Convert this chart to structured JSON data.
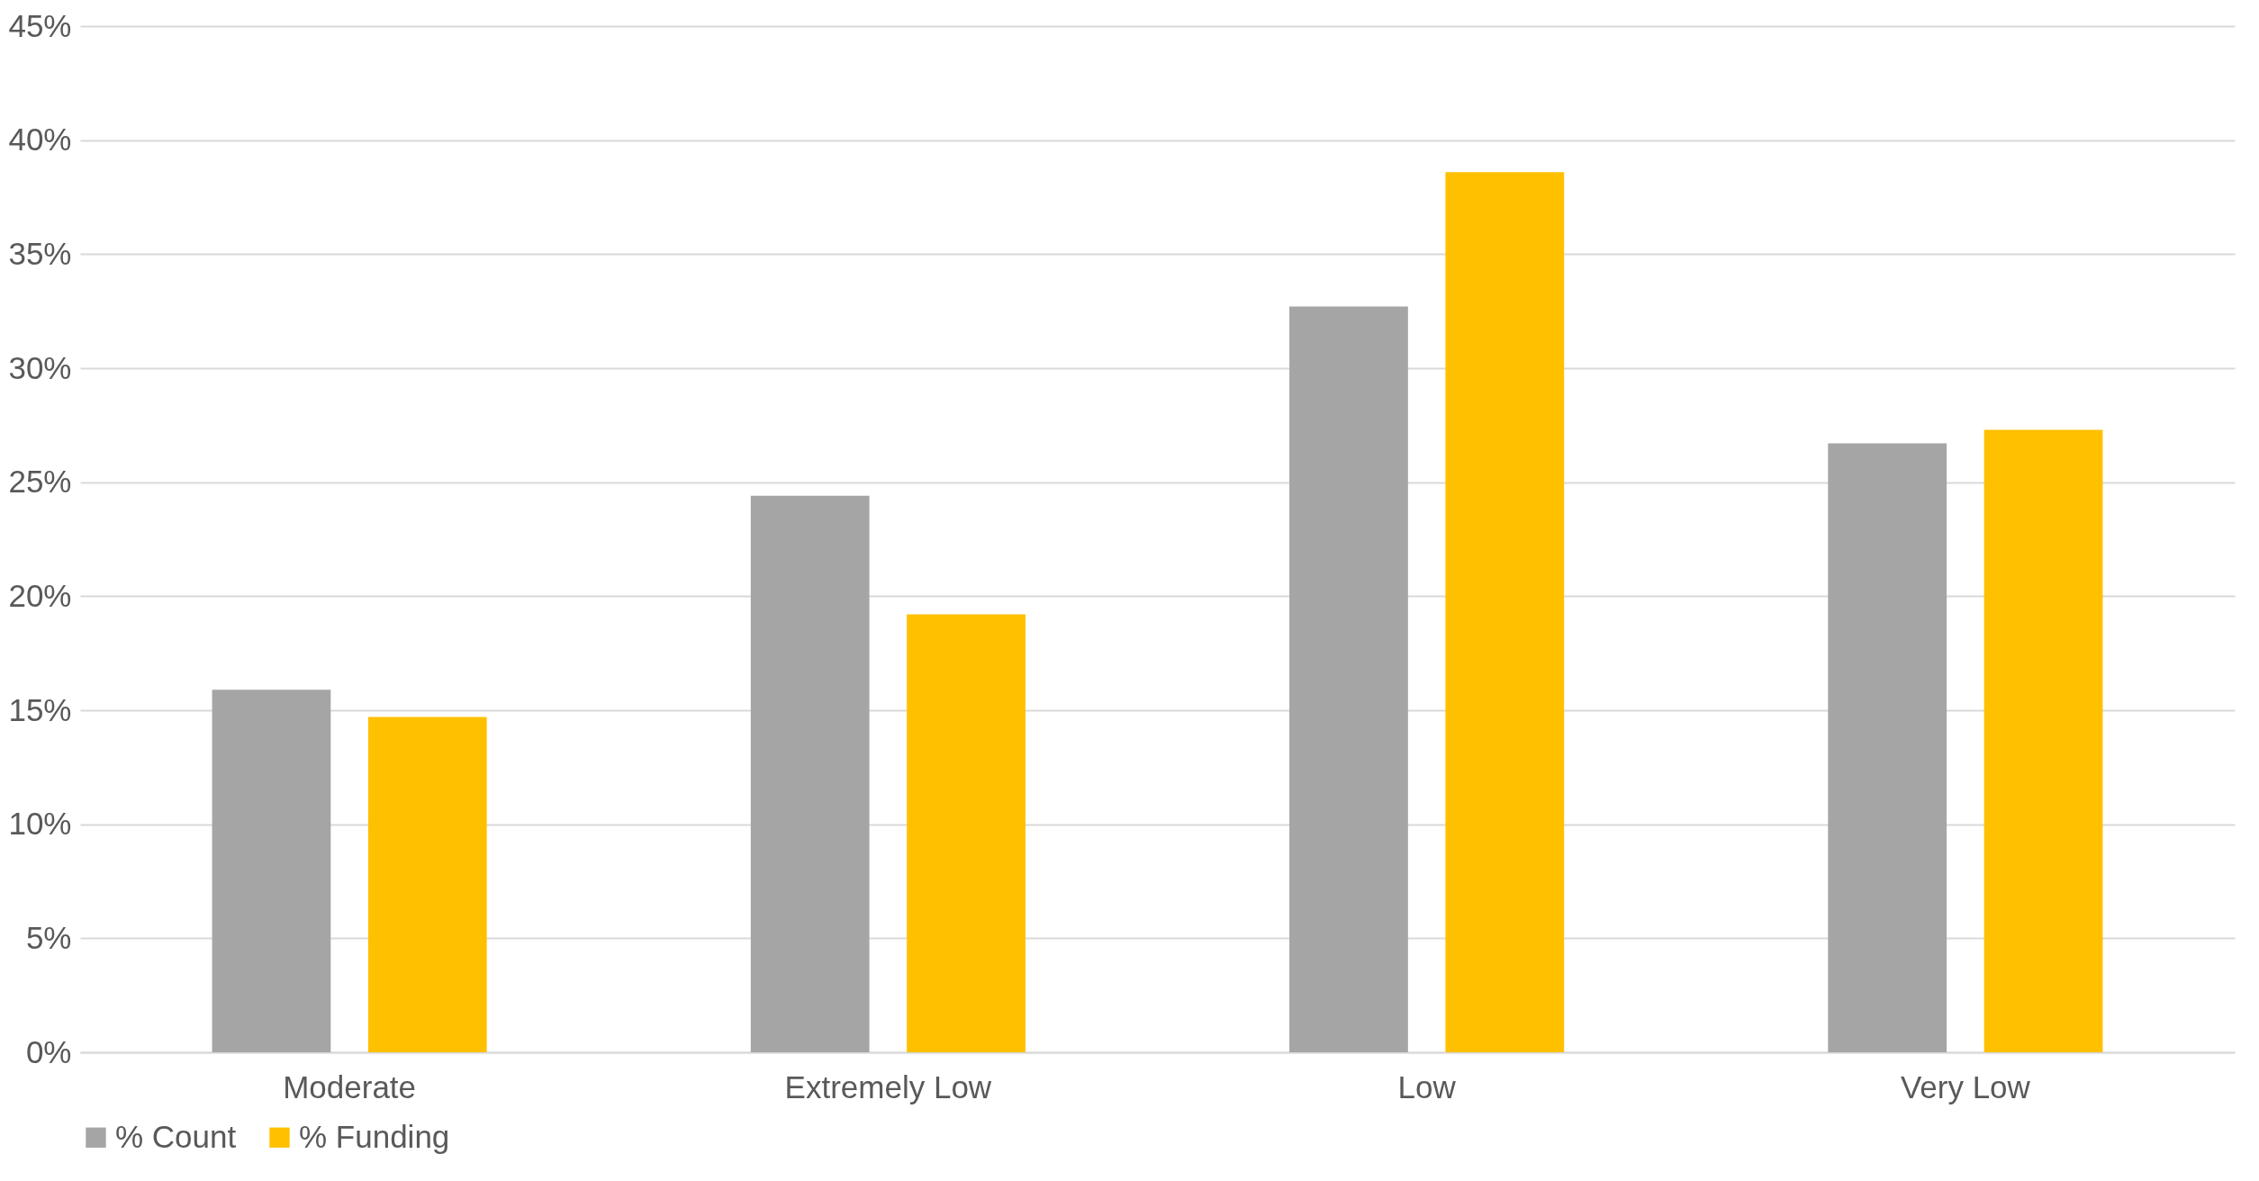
{
  "chart_data": {
    "type": "bar",
    "categories": [
      "Moderate",
      "Extremely Low",
      "Low",
      "Very Low"
    ],
    "series": [
      {
        "name": "% Count",
        "color": "#a5a5a5",
        "values": [
          15.9,
          24.4,
          32.7,
          26.7
        ]
      },
      {
        "name": "% Funding",
        "color": "#ffc000",
        "values": [
          14.7,
          19.2,
          38.6,
          27.3
        ]
      }
    ],
    "ylim": [
      0,
      45
    ],
    "yticks": [
      {
        "value": 0,
        "label": "0%"
      },
      {
        "value": 5,
        "label": "5%"
      },
      {
        "value": 10,
        "label": "10%"
      },
      {
        "value": 15,
        "label": "15%"
      },
      {
        "value": 20,
        "label": "20%"
      },
      {
        "value": 25,
        "label": "25%"
      },
      {
        "value": 30,
        "label": "30%"
      },
      {
        "value": 35,
        "label": "35%"
      },
      {
        "value": 40,
        "label": "40%"
      },
      {
        "value": 45,
        "label": "45%"
      }
    ],
    "grid": "y",
    "legend": "bottom"
  }
}
